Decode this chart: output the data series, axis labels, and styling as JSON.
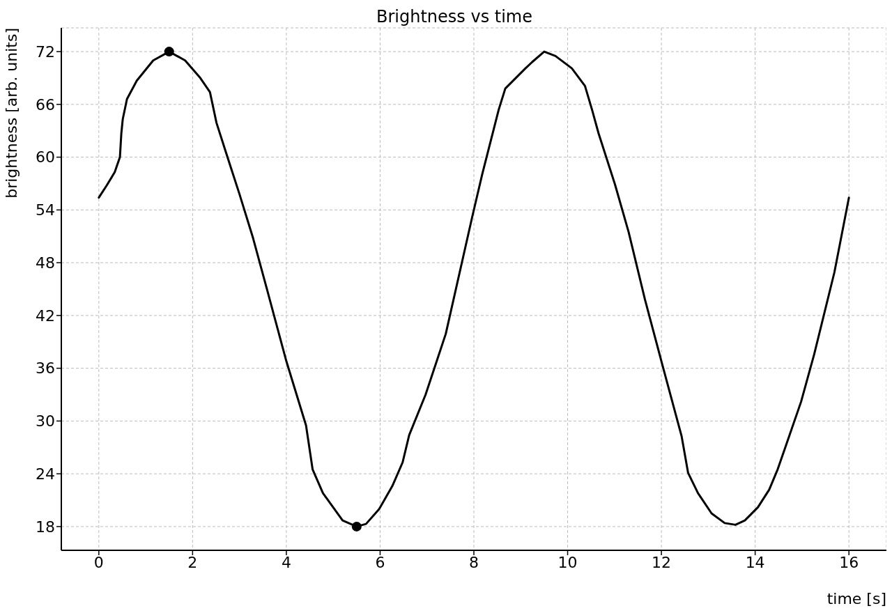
{
  "chart_data": {
    "type": "line",
    "title": "Brightness vs time",
    "xlabel": "time [s]",
    "ylabel": "brightness [arb. units]",
    "xlim": [
      -0.8,
      16.8
    ],
    "xticks": [
      0,
      2,
      4,
      6,
      8,
      10,
      12,
      14,
      16
    ],
    "ylim": [
      15.3,
      74.7
    ],
    "yticks": [
      18,
      24,
      30,
      36,
      42,
      48,
      54,
      60,
      66,
      72
    ],
    "grid": true,
    "line_style": "solid",
    "marker": "none",
    "series": [
      {
        "color": "#000000",
        "x": [
          0,
          0.17,
          0.34,
          0.45,
          0.48,
          0.51,
          0.6,
          0.81,
          1.16,
          1.5,
          1.84,
          2.15,
          2.37,
          2.51,
          2.72,
          3.0,
          3.29,
          3.57,
          4.0,
          4.42,
          4.56,
          4.78,
          5.2,
          5.5,
          5.7,
          5.98,
          6.26,
          6.48,
          6.62,
          6.97,
          7.4,
          7.96,
          8.18,
          8.53,
          8.67,
          9.1,
          9.24,
          9.5,
          9.74,
          10.09,
          10.37,
          10.52,
          10.66,
          11.01,
          11.3,
          11.65,
          12.0,
          12.43,
          12.57,
          12.78,
          13.07,
          13.35,
          13.58,
          13.78,
          14.06,
          14.3,
          14.48,
          14.63,
          14.98,
          15.26,
          15.69,
          16.0
        ],
        "values": [
          55.4,
          56.8,
          58.3,
          60.0,
          62.7,
          64.3,
          66.6,
          68.7,
          71.0,
          72.0,
          71.0,
          69.1,
          67.4,
          63.9,
          60.4,
          55.8,
          50.8,
          45.3,
          36.8,
          29.5,
          24.5,
          21.8,
          18.7,
          18.0,
          18.3,
          20.0,
          22.6,
          25.3,
          28.4,
          33.0,
          39.9,
          53.1,
          58.1,
          65.4,
          67.8,
          70.1,
          70.8,
          72.0,
          71.5,
          70.1,
          68.1,
          65.4,
          62.7,
          56.9,
          51.5,
          43.8,
          36.8,
          28.3,
          24.1,
          21.8,
          19.5,
          18.4,
          18.2,
          18.7,
          20.2,
          22.2,
          24.5,
          26.8,
          32.2,
          37.6,
          46.9,
          55.4
        ]
      },
      {
        "type": "scatter",
        "color": "#000000",
        "marker": "circle",
        "x": [
          1.5,
          5.5
        ],
        "values": [
          72,
          18
        ]
      }
    ]
  }
}
